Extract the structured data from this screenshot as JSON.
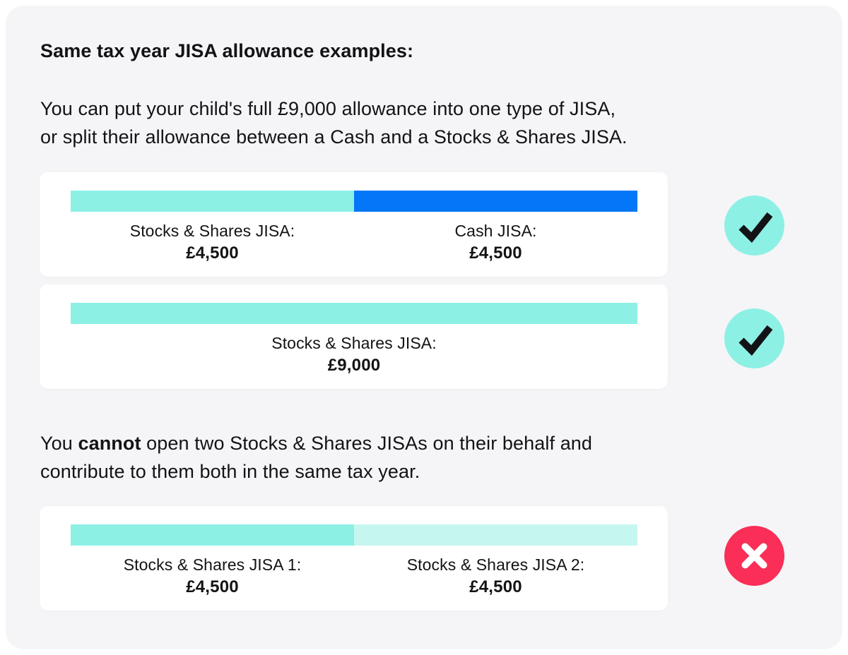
{
  "colors": {
    "page_bg": "#FFFFFF",
    "panel_bg": "#F5F5F7",
    "card_bg": "#FFFFFF",
    "ink": "#131316",
    "teal": "#8DF0E5",
    "teal_light": "#C6F6F0",
    "blue": "#0377F7",
    "pink": "#FA2E57",
    "check_mark": "#131316",
    "cross_mark": "#FFFFFF"
  },
  "heading": "Same tax year JISA allowance examples:",
  "intro": {
    "line1": "You can put your child's full £9,000 allowance into one type of JISA,",
    "line2": "or split their allowance between a Cash and a Stocks & Shares JISA."
  },
  "rule": {
    "pre": "You ",
    "bold": "cannot",
    "post": " open two Stocks & Shares JISAs on their behalf and",
    "line2": "contribute to them both in the same tax year."
  },
  "allowance_total": "£9,000",
  "cards": [
    {
      "status": "allowed",
      "status_icon": "check-icon",
      "segments": [
        {
          "label": "Stocks & Shares JISA:",
          "value": "£4,500",
          "color": "#8DF0E5",
          "width_pct": 50
        },
        {
          "label": "Cash JISA:",
          "value": "£4,500",
          "color": "#0377F7",
          "width_pct": 50
        }
      ]
    },
    {
      "status": "allowed",
      "status_icon": "check-icon",
      "segments": [
        {
          "label": "Stocks & Shares JISA:",
          "value": "£9,000",
          "color": "#8DF0E5",
          "width_pct": 100
        }
      ]
    },
    {
      "status": "not-allowed",
      "status_icon": "cross-icon",
      "segments": [
        {
          "label": "Stocks & Shares JISA 1:",
          "value": "£4,500",
          "color": "#8DF0E5",
          "width_pct": 50
        },
        {
          "label": "Stocks & Shares JISA 2:",
          "value": "£4,500",
          "color": "#C6F6F0",
          "width_pct": 50
        }
      ]
    }
  ]
}
